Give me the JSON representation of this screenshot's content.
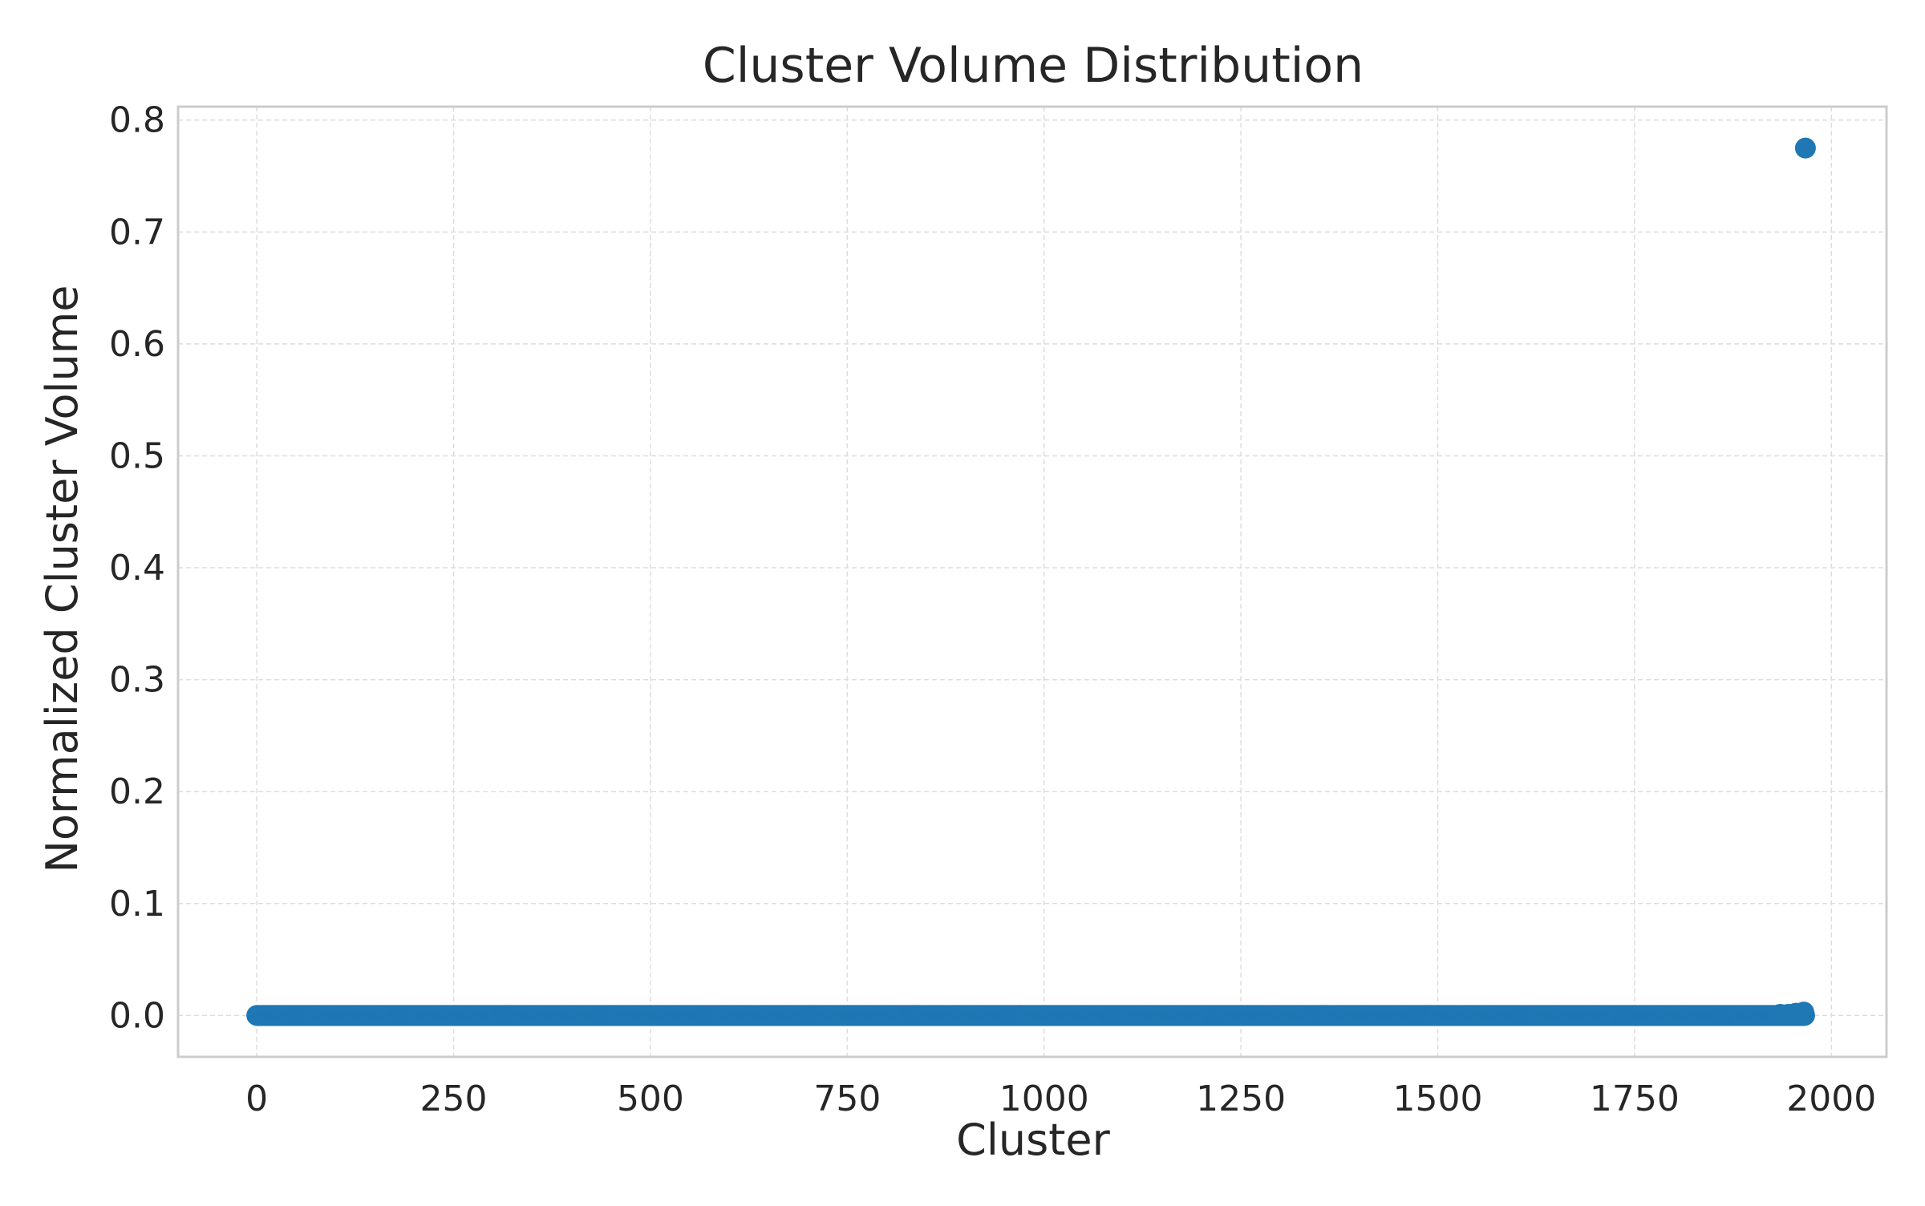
{
  "chart_data": {
    "type": "scatter",
    "title": "Cluster Volume Distribution",
    "xlabel": "Cluster",
    "ylabel": "Normalized Cluster Volume",
    "xlim": [
      -100,
      2070
    ],
    "ylim": [
      -0.037,
      0.812
    ],
    "xticks": [
      0,
      250,
      500,
      750,
      1000,
      1250,
      1500,
      1750,
      2000
    ],
    "xtick_labels": [
      "0",
      "250",
      "500",
      "750",
      "1000",
      "1250",
      "1500",
      "1750",
      "2000"
    ],
    "yticks": [
      0.0,
      0.1,
      0.2,
      0.3,
      0.4,
      0.5,
      0.6,
      0.7,
      0.8
    ],
    "ytick_labels": [
      "0.0",
      "0.1",
      "0.2",
      "0.3",
      "0.4",
      "0.5",
      "0.6",
      "0.7",
      "0.8"
    ],
    "grid": true,
    "series": [
      {
        "color": "#1f77b4",
        "dense_range": {
          "x_start": 0,
          "x_end": 1966,
          "step": 1,
          "y": 0.0
        },
        "points": [
          {
            "x": 1935,
            "y": 0.001
          },
          {
            "x": 1945,
            "y": 0.001
          },
          {
            "x": 1950,
            "y": 0.001
          },
          {
            "x": 1955,
            "y": 0.002
          },
          {
            "x": 1960,
            "y": 0.002
          },
          {
            "x": 1965,
            "y": 0.003
          },
          {
            "x": 1967,
            "y": 0.775
          }
        ]
      }
    ]
  },
  "colors": {
    "series": "#1f77b4",
    "grid": "#dddddd",
    "frame": "#cccccc",
    "text": "#262626",
    "background": "#ffffff"
  }
}
